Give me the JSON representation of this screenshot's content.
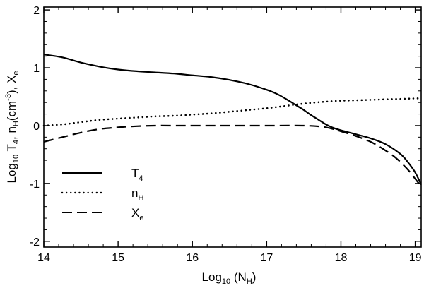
{
  "chart_data": {
    "type": "line",
    "xlabel": {
      "base": "Log",
      "base_sub": "10",
      "rest": " (N",
      "rest_sub": "H",
      "close": ")"
    },
    "ylabel": {
      "p1": "Log",
      "p1_sub": "10",
      "p2": " T",
      "p2_sub": "4",
      "p3": ", n",
      "p3_sub": "H",
      "p4": "(cm",
      "p4_sup": "-3",
      "p5": "), X",
      "p5_sub": "e"
    },
    "xlim": [
      14,
      19.08
    ],
    "ylim": [
      -2.1,
      2.05
    ],
    "xticks": [
      14,
      15,
      16,
      17,
      18,
      19
    ],
    "xtick_labels": [
      "14",
      "15",
      "16",
      "17",
      "18",
      "19"
    ],
    "yticks": [
      -2,
      -1,
      0,
      1,
      2
    ],
    "ytick_labels": [
      "-2",
      "-1",
      "0",
      "1",
      "2"
    ],
    "legend_position": "lower-left",
    "series": [
      {
        "name": "T4",
        "label_main": "T",
        "label_sub": "4",
        "style": "solid",
        "color": "#000000",
        "x": [
          14.0,
          14.25,
          14.5,
          14.75,
          15.0,
          15.25,
          15.5,
          15.75,
          16.0,
          16.25,
          16.5,
          16.75,
          17.0,
          17.15,
          17.3,
          17.4,
          17.5,
          17.6,
          17.7,
          17.8,
          17.9,
          18.0,
          18.2,
          18.4,
          18.6,
          18.8,
          18.9,
          19.0,
          19.08
        ],
        "y": [
          1.23,
          1.18,
          1.09,
          1.02,
          0.97,
          0.94,
          0.92,
          0.9,
          0.87,
          0.84,
          0.79,
          0.72,
          0.62,
          0.54,
          0.43,
          0.35,
          0.27,
          0.18,
          0.1,
          0.02,
          -0.04,
          -0.08,
          -0.15,
          -0.22,
          -0.32,
          -0.49,
          -0.63,
          -0.81,
          -1.02
        ]
      },
      {
        "name": "nH",
        "label_main": "n",
        "label_sub": "H",
        "style": "dotted",
        "color": "#000000",
        "x": [
          14.0,
          14.25,
          14.5,
          14.75,
          15.0,
          15.25,
          15.5,
          15.75,
          16.0,
          16.25,
          16.5,
          16.75,
          17.0,
          17.25,
          17.5,
          17.75,
          18.0,
          18.25,
          18.5,
          18.75,
          19.0,
          19.08
        ],
        "y": [
          0.0,
          0.02,
          0.06,
          0.1,
          0.12,
          0.14,
          0.16,
          0.17,
          0.19,
          0.21,
          0.24,
          0.27,
          0.3,
          0.34,
          0.38,
          0.41,
          0.43,
          0.44,
          0.45,
          0.46,
          0.47,
          0.47
        ]
      },
      {
        "name": "Xe",
        "label_main": "X",
        "label_sub": "e",
        "style": "dashed",
        "color": "#000000",
        "x": [
          14.0,
          14.25,
          14.5,
          14.75,
          15.0,
          15.25,
          15.5,
          15.75,
          16.0,
          16.5,
          17.0,
          17.5,
          17.75,
          17.9,
          18.0,
          18.2,
          18.4,
          18.6,
          18.75,
          18.9,
          19.0,
          19.08
        ],
        "y": [
          -0.28,
          -0.2,
          -0.12,
          -0.06,
          -0.03,
          -0.01,
          0.0,
          0.0,
          0.0,
          0.0,
          0.0,
          0.0,
          -0.02,
          -0.06,
          -0.1,
          -0.18,
          -0.28,
          -0.43,
          -0.57,
          -0.76,
          -0.92,
          -1.05
        ]
      }
    ]
  }
}
